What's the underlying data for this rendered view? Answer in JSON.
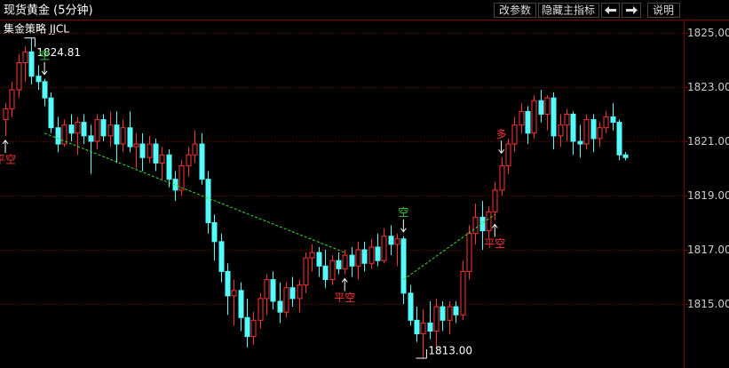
{
  "header": {
    "title": "现货黄金 (5分钟)",
    "buttons": [
      "改参数",
      "隐藏主指标",
      "说明"
    ]
  },
  "chart_data": {
    "type": "candlestick",
    "title": "集金策略 JJCL",
    "up_color": "#ff3232",
    "down_color": "#54fcfc",
    "grid": true,
    "ylim": [
      1812.64,
      1825.49
    ],
    "yticks": [
      {
        "value": 1825,
        "label": "1825.00"
      },
      {
        "value": 1823,
        "label": "1823.00"
      },
      {
        "value": 1821,
        "label": "1821.00"
      },
      {
        "value": 1819,
        "label": "1819.00"
      },
      {
        "value": 1817,
        "label": "1817.00"
      },
      {
        "value": 1815,
        "label": "1815.00"
      }
    ],
    "open": [
      1821.8,
      1822.2,
      1822.9,
      1823.9,
      1824.3,
      1823.4,
      1823.2,
      1822.6,
      1821.5,
      1820.9,
      1821.6,
      1821.3,
      1821.7,
      1821.2,
      1821.0,
      1821.8,
      1821.2,
      1821.6,
      1820.9,
      1821.5,
      1820.8,
      1820.9,
      1820.4,
      1820.9,
      1820.2,
      1820.5,
      1819.6,
      1819.2,
      1820.1,
      1820.5,
      1820.9,
      1819.6,
      1818.0,
      1817.3,
      1816.2,
      1815.3,
      1815.5,
      1814.5,
      1813.8,
      1814.4,
      1815.2,
      1815.9,
      1815.1,
      1814.7,
      1815.6,
      1815.2,
      1815.7,
      1816.7,
      1816.9,
      1816.4,
      1815.9,
      1816.6,
      1816.3,
      1816.8,
      1816.4,
      1817.0,
      1816.5,
      1817.1,
      1816.6,
      1817.5,
      1817.2,
      1817.4,
      1815.4,
      1814.4,
      1813.9,
      1814.3,
      1814.0,
      1814.9,
      1814.4,
      1814.9,
      1814.6,
      1816.2,
      1817.6,
      1818.2,
      1817.7,
      1818.4,
      1819.2,
      1820.1,
      1820.9,
      1821.6,
      1822.1,
      1821.3,
      1822.5,
      1822.0,
      1822.6,
      1821.2,
      1821.6,
      1822.0,
      1821.0,
      1820.9,
      1821.8,
      1821.1,
      1821.5,
      1821.9,
      1821.7,
      1820.5
    ],
    "high": [
      1822.4,
      1823.2,
      1824.2,
      1824.5,
      1824.81,
      1823.8,
      1823.3,
      1822.8,
      1821.9,
      1821.8,
      1822.0,
      1821.9,
      1822.0,
      1821.6,
      1822.0,
      1822.0,
      1822.1,
      1822.1,
      1821.8,
      1822.1,
      1821.3,
      1821.3,
      1821.2,
      1821.1,
      1820.8,
      1820.7,
      1819.9,
      1820.3,
      1820.8,
      1821.4,
      1821.3,
      1819.9,
      1818.3,
      1817.6,
      1816.5,
      1815.9,
      1815.8,
      1815.2,
      1814.7,
      1815.4,
      1816.1,
      1816.2,
      1815.8,
      1815.8,
      1816.0,
      1815.9,
      1816.9,
      1817.2,
      1817.1,
      1817.0,
      1816.8,
      1816.9,
      1817.0,
      1817.1,
      1817.3,
      1817.3,
      1817.4,
      1817.6,
      1817.8,
      1817.9,
      1817.6,
      1817.5,
      1815.7,
      1814.9,
      1814.8,
      1815.1,
      1815.2,
      1815.1,
      1815.1,
      1815.1,
      1816.6,
      1817.9,
      1818.7,
      1818.8,
      1818.6,
      1819.5,
      1820.4,
      1821.1,
      1821.9,
      1822.4,
      1822.3,
      1822.7,
      1822.9,
      1822.7,
      1822.8,
      1822.0,
      1822.2,
      1822.1,
      1821.6,
      1822.0,
      1822.0,
      1821.7,
      1822.1,
      1822.4,
      1821.8,
      1820.6
    ],
    "low": [
      1821.2,
      1821.9,
      1822.6,
      1823.2,
      1823.1,
      1822.9,
      1822.3,
      1821.3,
      1820.6,
      1820.8,
      1821.0,
      1820.5,
      1820.9,
      1819.8,
      1820.7,
      1821.0,
      1820.8,
      1820.2,
      1820.6,
      1820.6,
      1820.0,
      1819.9,
      1820.2,
      1819.9,
      1819.6,
      1819.3,
      1818.8,
      1819.0,
      1819.7,
      1820.2,
      1819.4,
      1817.6,
      1816.6,
      1815.8,
      1814.6,
      1814.2,
      1814.0,
      1813.4,
      1813.5,
      1814.1,
      1814.6,
      1814.8,
      1814.3,
      1814.5,
      1814.9,
      1814.7,
      1815.4,
      1816.2,
      1816.0,
      1815.6,
      1815.7,
      1816.1,
      1816.1,
      1816.0,
      1815.9,
      1816.2,
      1816.3,
      1816.4,
      1816.5,
      1816.8,
      1816.4,
      1815.0,
      1814.2,
      1813.6,
      1813.0,
      1813.7,
      1813.4,
      1814.0,
      1813.9,
      1814.3,
      1814.4,
      1815.9,
      1817.2,
      1817.0,
      1817.4,
      1818.1,
      1819.0,
      1819.8,
      1820.6,
      1821.3,
      1820.9,
      1821.1,
      1821.7,
      1821.4,
      1820.7,
      1820.8,
      1821.0,
      1820.5,
      1820.4,
      1820.7,
      1820.6,
      1820.8,
      1821.3,
      1821.4,
      1820.3,
      1820.3
    ],
    "close": [
      1822.2,
      1822.9,
      1823.9,
      1824.3,
      1823.4,
      1823.2,
      1822.6,
      1821.5,
      1820.9,
      1821.6,
      1821.3,
      1821.7,
      1821.2,
      1821.0,
      1821.8,
      1821.2,
      1821.6,
      1820.9,
      1821.5,
      1820.8,
      1820.9,
      1820.4,
      1820.9,
      1820.2,
      1820.5,
      1819.6,
      1819.2,
      1820.1,
      1820.5,
      1820.9,
      1819.6,
      1818.0,
      1817.3,
      1816.2,
      1815.3,
      1815.5,
      1814.5,
      1813.8,
      1814.4,
      1815.2,
      1815.9,
      1815.1,
      1814.7,
      1815.6,
      1815.2,
      1815.7,
      1816.7,
      1816.9,
      1816.4,
      1815.9,
      1816.6,
      1816.3,
      1816.8,
      1816.4,
      1817.0,
      1816.5,
      1817.1,
      1816.6,
      1817.5,
      1817.2,
      1817.4,
      1815.4,
      1814.4,
      1813.9,
      1814.3,
      1814.0,
      1814.9,
      1814.4,
      1814.9,
      1814.6,
      1816.2,
      1817.6,
      1818.2,
      1817.7,
      1818.4,
      1819.2,
      1820.1,
      1820.9,
      1821.6,
      1822.1,
      1821.3,
      1822.5,
      1822.0,
      1822.6,
      1821.2,
      1821.6,
      1822.0,
      1821.0,
      1820.9,
      1821.8,
      1821.1,
      1821.5,
      1821.9,
      1821.7,
      1820.5,
      1820.4
    ],
    "annotations": [
      {
        "value": 1824.81,
        "label": "1824.81",
        "at": 4,
        "side": "below"
      },
      {
        "value": 1813.0,
        "label": "1813.00",
        "at": 64,
        "side": "above"
      }
    ],
    "signals": [
      {
        "text": "平空",
        "at": 0,
        "side": "below",
        "color": "#ff3232"
      },
      {
        "text": "空",
        "at": 6,
        "side": "above",
        "color": "#33cc33"
      },
      {
        "text": "平空",
        "at": 52,
        "side": "below",
        "color": "#ff3232"
      },
      {
        "text": "空",
        "at": 61,
        "side": "above",
        "color": "#33cc33"
      },
      {
        "text": "多",
        "at": 76,
        "side": "above",
        "color": "#ff3232"
      },
      {
        "text": "平空",
        "at": 75,
        "side": "below",
        "color": "#ff3232"
      }
    ],
    "trend_lines": [
      {
        "from": 6,
        "from_value": 1821.3,
        "to": 52,
        "to_value": 1816.9,
        "color": "#33dd33"
      },
      {
        "from": 61,
        "from_value": 1815.9,
        "to": 75,
        "to_value": 1818.3,
        "color": "#33dd33"
      }
    ]
  }
}
